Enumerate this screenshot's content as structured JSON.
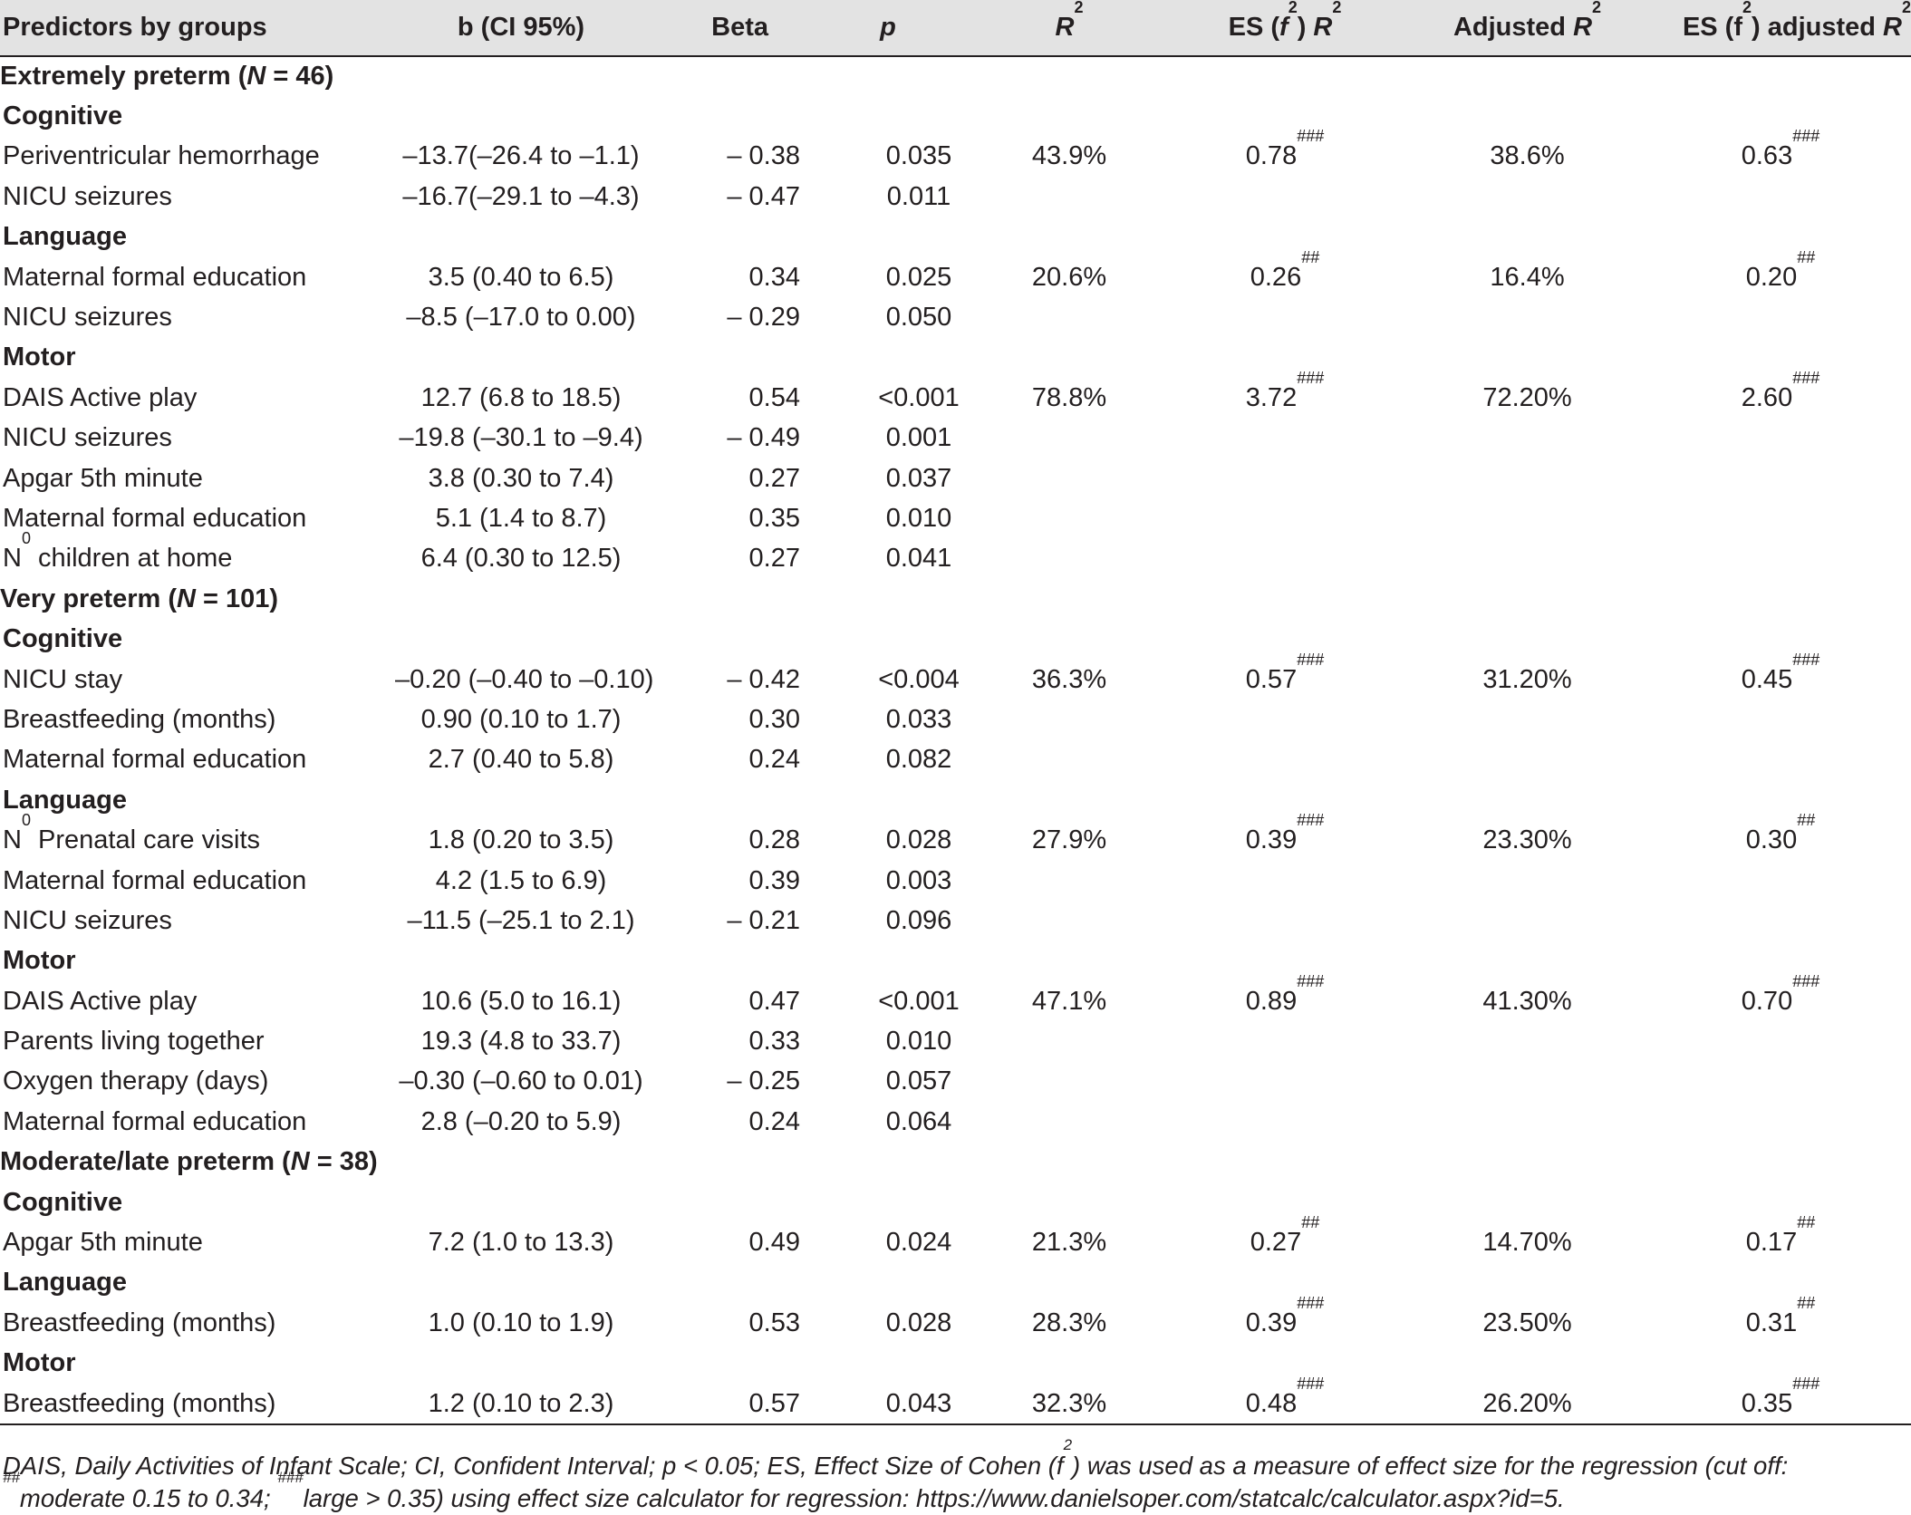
{
  "header": {
    "col0": "Predictors by groups",
    "col1": "b (CI 95%)",
    "col2": "Beta",
    "col3": "p",
    "col4_base": "R",
    "col4_sup": "2",
    "col5_pre": "ES (",
    "col5_f": "f",
    "col5_fsup": "2",
    "col5_mid": ") ",
    "col5_R": "R",
    "col5_Rsup": "2",
    "col6_pre": "Adjusted ",
    "col6_R": "R",
    "col6_Rsup": "2",
    "col7_pre": "ES (f",
    "col7_fsup": "2",
    "col7_mid": ") adjusted ",
    "col7_R": "R",
    "col7_Rsup": "2"
  },
  "groups": [
    {
      "label_pre": "Extremely preterm (",
      "label_n": "N",
      "label_post": " = 46)",
      "subgroups": [
        {
          "name": "Cognitive",
          "rows": [
            {
              "pred": "Periventricular hemorrhage",
              "b": "–13.7(–26.4 to –1.1)",
              "beta": "– 0.38",
              "p": "0.035",
              "r2": "43.9%",
              "es": "0.78",
              "es_sup": "###",
              "adj": "38.6%",
              "esadj": "0.63",
              "esadj_sup": "###"
            },
            {
              "pred": "NICU seizures",
              "b": "–16.7(–29.1 to –4.3)",
              "beta": "– 0.47",
              "p": "0.011",
              "r2": "",
              "es": "",
              "es_sup": "",
              "adj": "",
              "esadj": "",
              "esadj_sup": ""
            }
          ]
        },
        {
          "name": "Language",
          "rows": [
            {
              "pred": "Maternal formal education",
              "b": "3.5 (0.40 to 6.5)",
              "beta": "0.34",
              "p": "0.025",
              "r2": "20.6%",
              "es": "0.26",
              "es_sup": "##",
              "adj": "16.4%",
              "esadj": "0.20",
              "esadj_sup": "##"
            },
            {
              "pred": "NICU seizures",
              "b": "–8.5 (–17.0 to 0.00)",
              "beta": "– 0.29",
              "p": "0.050",
              "r2": "",
              "es": "",
              "es_sup": "",
              "adj": "",
              "esadj": "",
              "esadj_sup": ""
            }
          ]
        },
        {
          "name": "Motor",
          "rows": [
            {
              "pred": "DAIS Active play",
              "b": "12.7 (6.8 to 18.5)",
              "beta": "0.54",
              "p": "<0.001",
              "r2": "78.8%",
              "es": "3.72",
              "es_sup": "###",
              "adj": "72.20%",
              "esadj": "2.60",
              "esadj_sup": "###"
            },
            {
              "pred": "NICU seizures",
              "b": "–19.8 (–30.1 to –9.4)",
              "beta": "– 0.49",
              "p": "0.001",
              "r2": "",
              "es": "",
              "es_sup": "",
              "adj": "",
              "esadj": "",
              "esadj_sup": ""
            },
            {
              "pred": "Apgar 5th minute",
              "b": "3.8 (0.30 to 7.4)",
              "beta": "0.27",
              "p": "0.037",
              "r2": "",
              "es": "",
              "es_sup": "",
              "adj": "",
              "esadj": "",
              "esadj_sup": ""
            },
            {
              "pred": "Maternal formal education",
              "b": "5.1 (1.4 to 8.7)",
              "beta": "0.35",
              "p": "0.010",
              "r2": "",
              "es": "",
              "es_sup": "",
              "adj": "",
              "esadj": "",
              "esadj_sup": ""
            },
            {
              "pred_pre": "N",
              "pred_sup": "0",
              "pred": " children at home",
              "b": "6.4 (0.30 to 12.5)",
              "beta": "0.27",
              "p": "0.041",
              "r2": "",
              "es": "",
              "es_sup": "",
              "adj": "",
              "esadj": "",
              "esadj_sup": ""
            }
          ]
        }
      ]
    },
    {
      "label_pre": "Very preterm (",
      "label_n": "N",
      "label_post": " = 101)",
      "subgroups": [
        {
          "name": "Cognitive",
          "rows": [
            {
              "pred": "NICU stay",
              "b": "–0.20 (–0.40 to –0.10)",
              "beta": "– 0.42",
              "p": "<0.004",
              "r2": "36.3%",
              "es": "0.57",
              "es_sup": "###",
              "adj": "31.20%",
              "esadj": "0.45",
              "esadj_sup": "###"
            },
            {
              "pred": "Breastfeeding (months)",
              "b": "0.90 (0.10 to 1.7)",
              "beta": "0.30",
              "p": "0.033",
              "r2": "",
              "es": "",
              "es_sup": "",
              "adj": "",
              "esadj": "",
              "esadj_sup": ""
            },
            {
              "pred": "Maternal formal education",
              "b": "2.7 (0.40 to 5.8)",
              "beta": "0.24",
              "p": "0.082",
              "r2": "",
              "es": "",
              "es_sup": "",
              "adj": "",
              "esadj": "",
              "esadj_sup": ""
            }
          ]
        },
        {
          "name": "Language",
          "rows": [
            {
              "pred_pre": "N",
              "pred_sup": "0",
              "pred": " Prenatal care visits",
              "b": "1.8 (0.20 to 3.5)",
              "beta": "0.28",
              "p": "0.028",
              "r2": "27.9%",
              "es": "0.39",
              "es_sup": "###",
              "adj": "23.30%",
              "esadj": "0.30",
              "esadj_sup": "##"
            },
            {
              "pred": "Maternal formal education",
              "b": "4.2 (1.5 to 6.9)",
              "beta": "0.39",
              "p": "0.003",
              "r2": "",
              "es": "",
              "es_sup": "",
              "adj": "",
              "esadj": "",
              "esadj_sup": ""
            },
            {
              "pred": "NICU seizures",
              "b": "–11.5 (–25.1 to 2.1)",
              "beta": "– 0.21",
              "p": "0.096",
              "r2": "",
              "es": "",
              "es_sup": "",
              "adj": "",
              "esadj": "",
              "esadj_sup": ""
            }
          ]
        },
        {
          "name": "Motor",
          "rows": [
            {
              "pred": "DAIS Active play",
              "b": "10.6 (5.0 to 16.1)",
              "beta": "0.47",
              "p": "<0.001",
              "r2": "47.1%",
              "es": "0.89",
              "es_sup": "###",
              "adj": "41.30%",
              "esadj": "0.70",
              "esadj_sup": "###"
            },
            {
              "pred": "Parents living together",
              "b": "19.3 (4.8 to 33.7)",
              "beta": "0.33",
              "p": "0.010",
              "r2": "",
              "es": "",
              "es_sup": "",
              "adj": "",
              "esadj": "",
              "esadj_sup": ""
            },
            {
              "pred": "Oxygen therapy (days)",
              "b": "–0.30 (–0.60 to 0.01)",
              "beta": "– 0.25",
              "p": "0.057",
              "r2": "",
              "es": "",
              "es_sup": "",
              "adj": "",
              "esadj": "",
              "esadj_sup": ""
            },
            {
              "pred": "Maternal formal education",
              "b": "2.8 (–0.20 to 5.9)",
              "beta": "0.24",
              "p": "0.064",
              "r2": "",
              "es": "",
              "es_sup": "",
              "adj": "",
              "esadj": "",
              "esadj_sup": ""
            }
          ]
        }
      ]
    },
    {
      "label_pre": "Moderate/late preterm (",
      "label_n": "N",
      "label_post": " = 38)",
      "subgroups": [
        {
          "name": "Cognitive",
          "rows": [
            {
              "pred": "Apgar 5th minute",
              "b": "7.2 (1.0 to 13.3)",
              "beta": "0.49",
              "p": "0.024",
              "r2": "21.3%",
              "es": "0.27",
              "es_sup": "##",
              "adj": "14.70%",
              "esadj": "0.17",
              "esadj_sup": "##"
            }
          ]
        },
        {
          "name": "Language",
          "rows": [
            {
              "pred": "Breastfeeding (months)",
              "b": "1.0 (0.10 to 1.9)",
              "beta": "0.53",
              "p": "0.028",
              "r2": "28.3%",
              "es": "0.39",
              "es_sup": "###",
              "adj": "23.50%",
              "esadj": "0.31",
              "esadj_sup": "##"
            }
          ]
        },
        {
          "name": "Motor",
          "rows": [
            {
              "pred": "Breastfeeding (months)",
              "b": "1.2 (0.10 to 2.3)",
              "beta": "0.57",
              "p": "0.043",
              "r2": "32.3%",
              "es": "0.48",
              "es_sup": "###",
              "adj": "26.20%",
              "esadj": "0.35",
              "esadj_sup": "###"
            }
          ]
        }
      ]
    }
  ],
  "footnote": {
    "line1_a": "DAIS, Daily Activities of Infant Scale; CI, Confident Interval; p < 0.05; ES, Effect Size of Cohen (f",
    "line1_sup": "2",
    "line1_b": ") was used as a measure of effect size for the regression (cut off:",
    "line2_sup1": "##",
    "line2_a": "moderate 0.15 to 0.34; ",
    "line2_sup2": "###",
    "line2_b": "large > 0.35) using effect size calculator for regression: https://www.danielsoper.com/statcalc/calculator.aspx?id=5."
  }
}
